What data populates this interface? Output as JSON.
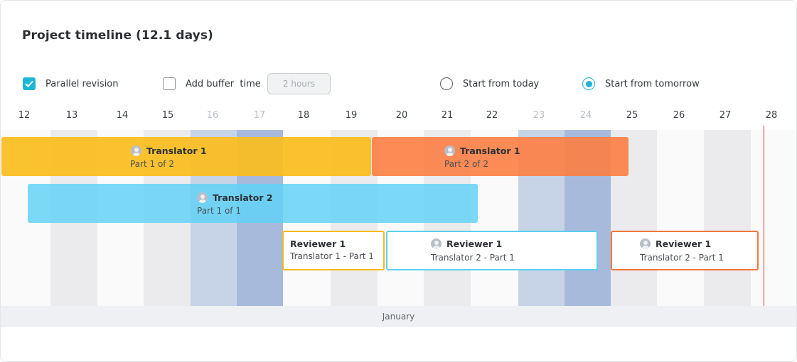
{
  "title": "Project timeline (12.1 days)",
  "options": {
    "parallel_revision": {
      "label": "Parallel revision",
      "checked": true
    },
    "add_buffer": {
      "label": "Add buffer  time",
      "checked": false,
      "value": "2 hours"
    },
    "start_today": {
      "label": "Start from today",
      "selected": false
    },
    "start_tomorrow": {
      "label": "Start from tomorrow",
      "selected": true
    }
  },
  "days": [
    "12",
    "13",
    "14",
    "15",
    "16",
    "17",
    "18",
    "19",
    "20",
    "21",
    "22",
    "23",
    "24",
    "25",
    "26",
    "27",
    "28"
  ],
  "month": "January",
  "tasks": [
    {
      "who": "Translator 1",
      "sub": "Part 1 of 2",
      "color": "#fbbd1e"
    },
    {
      "who": "Translator 1",
      "sub": "Part 2 of 2",
      "color": "#fd7e44"
    },
    {
      "who": "Translator 2",
      "sub": "Part 1 of 1",
      "color": "#5fd2f6"
    },
    {
      "who": "Reviewer 1",
      "sub": "Translator 1 - Part 1",
      "color": "#f5b921"
    },
    {
      "who": "Reviewer 1",
      "sub": "Translator 2 - Part 1",
      "color": "#5cd0ef"
    },
    {
      "who": "Reviewer 1",
      "sub": "Translator 2 - Part 1",
      "color": "#f2783e"
    }
  ],
  "icons": {
    "check": "check-icon",
    "avatar": "user-avatar-icon"
  }
}
